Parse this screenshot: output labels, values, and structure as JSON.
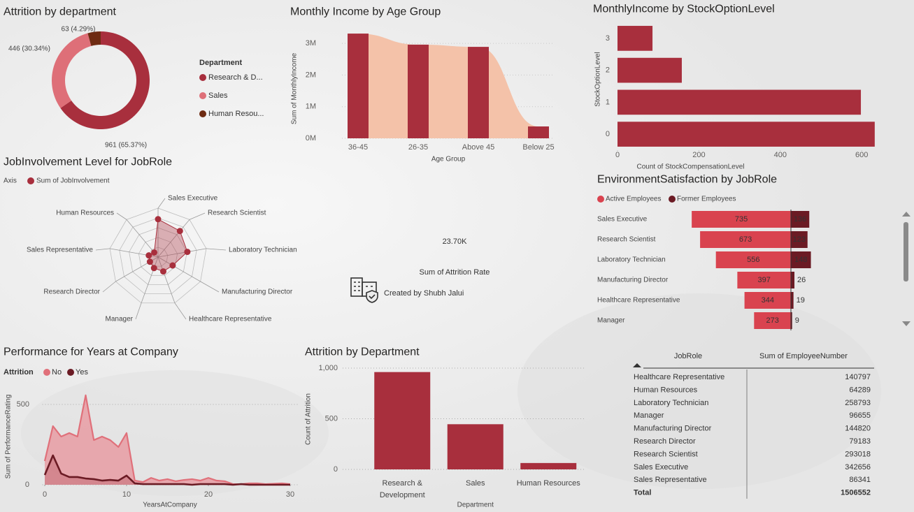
{
  "chart_data": [
    {
      "type": "donut",
      "title": "Attrition by department",
      "legend_title": "Department",
      "categories": [
        "Research & D...",
        "Sales",
        "Human Resou..."
      ],
      "values": [
        961,
        446,
        63
      ],
      "value_labels": [
        "961 (65.37%)",
        "446 (30.34%)",
        "63 (4.29%)"
      ],
      "colors": [
        "#a82f3d",
        "#de6f78",
        "#6e2b12"
      ]
    },
    {
      "type": "bar_area",
      "title": "Monthly Income by Age Group",
      "x_label": "Age Group",
      "y_label": "Sum of MonthlyIncome",
      "categories": [
        "36-45",
        "26-35",
        "Above 45",
        "Below 25"
      ],
      "values": [
        3310000,
        2960000,
        2890000,
        375000
      ],
      "color": "#a82f3d",
      "area_color": "#f4c2a9",
      "ylim": [
        0,
        3400000
      ],
      "yticks": [
        {
          "value": 0,
          "label": "0M"
        },
        {
          "value": 1000000,
          "label": "1M"
        },
        {
          "value": 2000000,
          "label": "2M"
        },
        {
          "value": 3000000,
          "label": "3M"
        }
      ],
      "grid": true
    },
    {
      "type": "hbar",
      "title": "MonthlyIncome by StockOptionLevel",
      "x_label": "Count of StockCompensationLevel",
      "y_label": "StockOptionLevel",
      "categories": [
        "0",
        "1",
        "2",
        "3"
      ],
      "values": [
        632,
        598,
        158,
        86
      ],
      "color": "#a82f3d",
      "xlim": [
        0,
        634
      ],
      "xticks": [
        0,
        200,
        400,
        600
      ]
    },
    {
      "type": "radar",
      "title": "JobInvolvement Level for JobRole",
      "legend_title": "Axis",
      "categories": [
        "Sales Executive",
        "Research Scientist",
        "Laboratory Technician",
        "Manufacturing Director",
        "Healthcare Representative",
        "Manager",
        "Research Director",
        "Sales Representative",
        "Human Resources"
      ],
      "series": [
        {
          "name": "Sum of JobInvolvement",
          "color": "#a82f3d",
          "values": [
            891,
            800,
            699,
            396,
            360,
            276,
            220,
            220,
            140
          ]
        }
      ],
      "rlim": [
        0,
        1150
      ]
    },
    {
      "type": "card",
      "value": 23700,
      "value_label": "23.70K",
      "label": "Sum of Attrition Rate",
      "color": "#a82f3d",
      "credit": "Created by Shubh Jalui"
    },
    {
      "type": "hbar_stacked",
      "title": "EnvironmentSatisfaction by JobRole",
      "categories": [
        "Sales Executive",
        "Research Scientist",
        "Laboratory Technician",
        "Manufacturing Director",
        "Healthcare Representative",
        "Manager"
      ],
      "series": [
        {
          "name": "Active Employees",
          "color": "#d9434f",
          "values": [
            735,
            673,
            556,
            397,
            344,
            273
          ]
        },
        {
          "name": "Former Employees",
          "color": "#6b1b24",
          "values": [
            136,
            123,
            148,
            26,
            19,
            9
          ]
        }
      ]
    },
    {
      "type": "area",
      "title": "Performance for Years at Company",
      "legend_title": "Attrition",
      "x_label": "YearsAtCompany",
      "y_label": "Sum of PerformanceRating",
      "x": [
        0,
        1,
        2,
        3,
        4,
        5,
        6,
        7,
        8,
        9,
        10,
        11,
        12,
        13,
        14,
        15,
        16,
        17,
        18,
        19,
        20,
        21,
        22,
        23,
        24,
        25,
        26,
        27,
        29,
        30
      ],
      "series": [
        {
          "name": "No",
          "color": "#e0707a",
          "values": [
            148,
            365,
            300,
            322,
            300,
            557,
            278,
            300,
            278,
            235,
            322,
            26,
            17,
            43,
            26,
            35,
            22,
            30,
            35,
            26,
            43,
            26,
            22,
            4,
            4,
            9,
            9,
            4,
            9,
            4
          ]
        },
        {
          "name": "Yes",
          "color": "#6b1b24",
          "values": [
            61,
            183,
            70,
            48,
            48,
            39,
            35,
            26,
            30,
            26,
            57,
            9,
            4,
            4,
            4,
            4,
            4,
            4,
            0,
            4,
            4,
            4,
            4,
            0,
            4,
            0,
            0,
            0,
            0,
            0
          ]
        }
      ],
      "xlim": [
        -0.3,
        30.9
      ],
      "ylim": [
        0,
        600
      ],
      "xticks": [
        0,
        10,
        20,
        30
      ],
      "yticks": [
        0,
        500
      ],
      "grid": true
    },
    {
      "type": "bar",
      "title": "Attrition by Department",
      "x_label": "Department",
      "y_label": "Count of Attrition",
      "categories": [
        "Research & Development",
        "Sales",
        "Human Resources"
      ],
      "values": [
        961,
        446,
        63
      ],
      "color": "#a82f3d",
      "ylim": [
        0,
        1050
      ],
      "yticks": [
        0,
        500,
        {
          "value": 1000,
          "label": "1,000"
        }
      ],
      "grid": true
    },
    {
      "type": "table",
      "columns": [
        "JobRole",
        "Sum of EmployeeNumber"
      ],
      "rows": [
        [
          "Healthcare Representative",
          140797
        ],
        [
          "Human Resources",
          64289
        ],
        [
          "Laboratory Technician",
          258793
        ],
        [
          "Manager",
          96655
        ],
        [
          "Manufacturing Director",
          144820
        ],
        [
          "Research Director",
          79183
        ],
        [
          "Research Scientist",
          293018
        ],
        [
          "Sales Executive",
          342656
        ],
        [
          "Sales Representative",
          86341
        ]
      ],
      "total_label": "Total",
      "total": 1506552
    }
  ]
}
